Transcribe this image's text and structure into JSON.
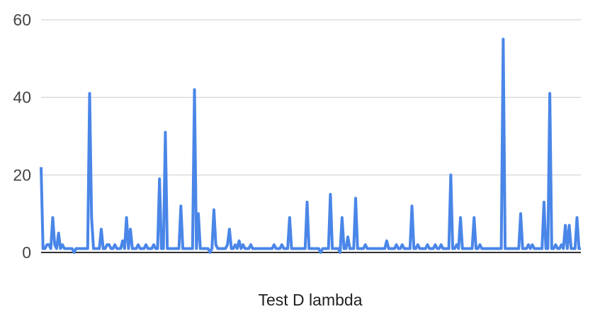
{
  "chart_data": {
    "type": "line",
    "title": "",
    "xlabel": "Test D lambda",
    "ylabel": "",
    "ylim": [
      0,
      60
    ],
    "yticks": [
      0,
      20,
      40,
      60
    ],
    "ytick_labels": [
      "0",
      "20",
      "40",
      "60"
    ],
    "grid": true,
    "legend": "none",
    "series": [
      {
        "color": "#4a86e8",
        "values": [
          22,
          1,
          1,
          2,
          2,
          1,
          9,
          2,
          1,
          5,
          1,
          2,
          1,
          1,
          1,
          1,
          1,
          0,
          1,
          1,
          1,
          1,
          1,
          1,
          1,
          41,
          9,
          1,
          1,
          1,
          1,
          6,
          1,
          1,
          2,
          2,
          1,
          1,
          2,
          1,
          1,
          1,
          3,
          1,
          9,
          1,
          6,
          1,
          1,
          1,
          2,
          1,
          1,
          1,
          2,
          1,
          1,
          1,
          2,
          1,
          1,
          19,
          1,
          1,
          31,
          1,
          1,
          1,
          1,
          1,
          1,
          1,
          12,
          1,
          1,
          1,
          1,
          1,
          1,
          42,
          1,
          10,
          1,
          1,
          1,
          1,
          1,
          0,
          1,
          11,
          2,
          1,
          1,
          1,
          1,
          1,
          2,
          6,
          1,
          1,
          2,
          1,
          3,
          1,
          2,
          1,
          1,
          1,
          2,
          1,
          1,
          1,
          1,
          1,
          1,
          1,
          1,
          1,
          1,
          1,
          2,
          1,
          1,
          1,
          2,
          1,
          1,
          1,
          9,
          1,
          1,
          1,
          1,
          1,
          1,
          1,
          1,
          13,
          1,
          1,
          1,
          1,
          1,
          1,
          0,
          1,
          1,
          1,
          1,
          15,
          1,
          1,
          1,
          1,
          0,
          9,
          1,
          1,
          4,
          1,
          1,
          1,
          14,
          1,
          1,
          1,
          1,
          2,
          1,
          1,
          1,
          1,
          1,
          1,
          1,
          1,
          1,
          1,
          3,
          1,
          1,
          1,
          1,
          2,
          1,
          1,
          2,
          1,
          1,
          1,
          1,
          12,
          1,
          1,
          2,
          1,
          1,
          1,
          1,
          2,
          1,
          1,
          1,
          2,
          1,
          1,
          2,
          1,
          1,
          1,
          1,
          20,
          1,
          1,
          2,
          1,
          9,
          1,
          1,
          1,
          1,
          1,
          1,
          9,
          1,
          1,
          2,
          1,
          1,
          1,
          1,
          1,
          1,
          1,
          1,
          1,
          1,
          1,
          55,
          1,
          1,
          1,
          1,
          1,
          1,
          1,
          1,
          10,
          1,
          1,
          1,
          2,
          1,
          2,
          1,
          1,
          1,
          1,
          1,
          13,
          1,
          1,
          41,
          1,
          1,
          2,
          1,
          1,
          2,
          1,
          7,
          1,
          7,
          1,
          1,
          1,
          9,
          1,
          1
        ]
      }
    ]
  }
}
